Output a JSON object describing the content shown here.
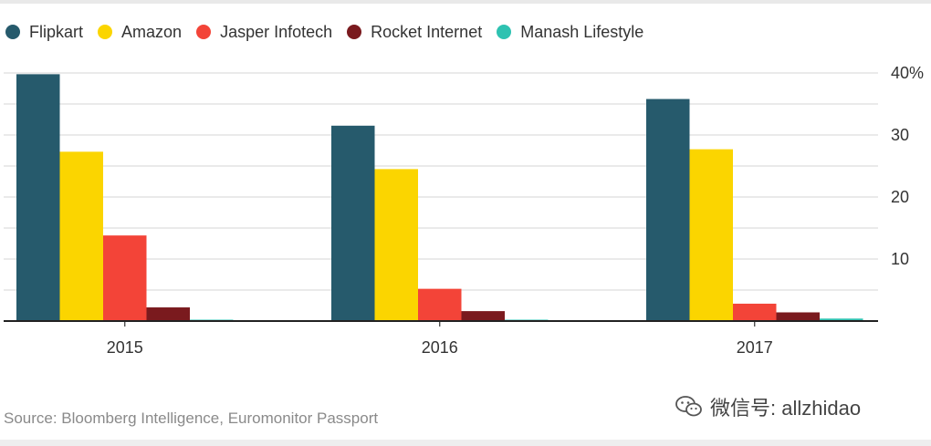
{
  "chart_data": {
    "type": "bar",
    "title": "",
    "xlabel": "",
    "ylabel": "",
    "categories": [
      "2015",
      "2016",
      "2017"
    ],
    "series": [
      {
        "name": "Flipkart",
        "color": "#265a6c",
        "values": [
          39.8,
          31.5,
          35.8
        ]
      },
      {
        "name": "Amazon",
        "color": "#fbd500",
        "values": [
          27.3,
          24.5,
          27.7
        ]
      },
      {
        "name": "Jasper Infotech",
        "color": "#f34438",
        "values": [
          13.8,
          5.2,
          2.8
        ]
      },
      {
        "name": "Rocket Internet",
        "color": "#7a1a1e",
        "values": [
          2.2,
          1.6,
          1.4
        ]
      },
      {
        "name": "Manash Lifestyle",
        "color": "#2ec2b1",
        "values": [
          0.2,
          0.2,
          0.4
        ]
      }
    ],
    "yticks": [
      "10",
      "20",
      "30",
      "40%"
    ],
    "ylim": [
      0,
      40
    ],
    "grid": true,
    "legend_position": "top-left"
  },
  "source": "Source: Bloomberg Intelligence, Euromonitor Passport",
  "watermark": {
    "text": "微信号: allzhidao",
    "icon": "wechat-icon"
  }
}
